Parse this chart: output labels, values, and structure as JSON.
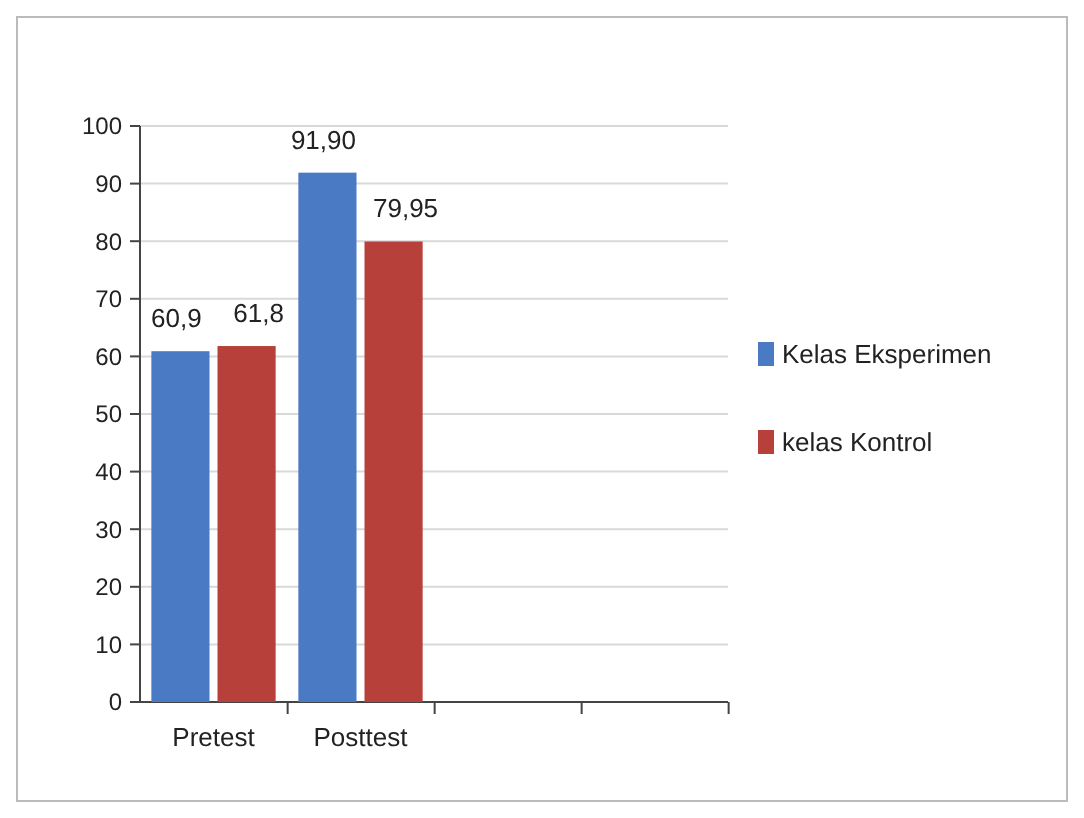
{
  "chart_data": {
    "type": "bar",
    "categories": [
      "Pretest",
      "Posttest",
      null,
      null
    ],
    "series": [
      {
        "name": "Kelas Eksperimen",
        "color": "#4a7ac4",
        "values": [
          60.9,
          91.9,
          null,
          null
        ],
        "value_labels": [
          "60,9",
          "91,90",
          null,
          null
        ]
      },
      {
        "name": "kelas Kontrol",
        "color": "#b8403a",
        "values": [
          61.8,
          79.95,
          null,
          null
        ],
        "value_labels": [
          "61,8",
          "79,95",
          null,
          null
        ]
      }
    ],
    "ylim": [
      0,
      100
    ],
    "yticks": [
      0,
      10,
      20,
      30,
      40,
      50,
      60,
      70,
      80,
      90,
      100
    ],
    "grid": "y",
    "legend": "right"
  }
}
